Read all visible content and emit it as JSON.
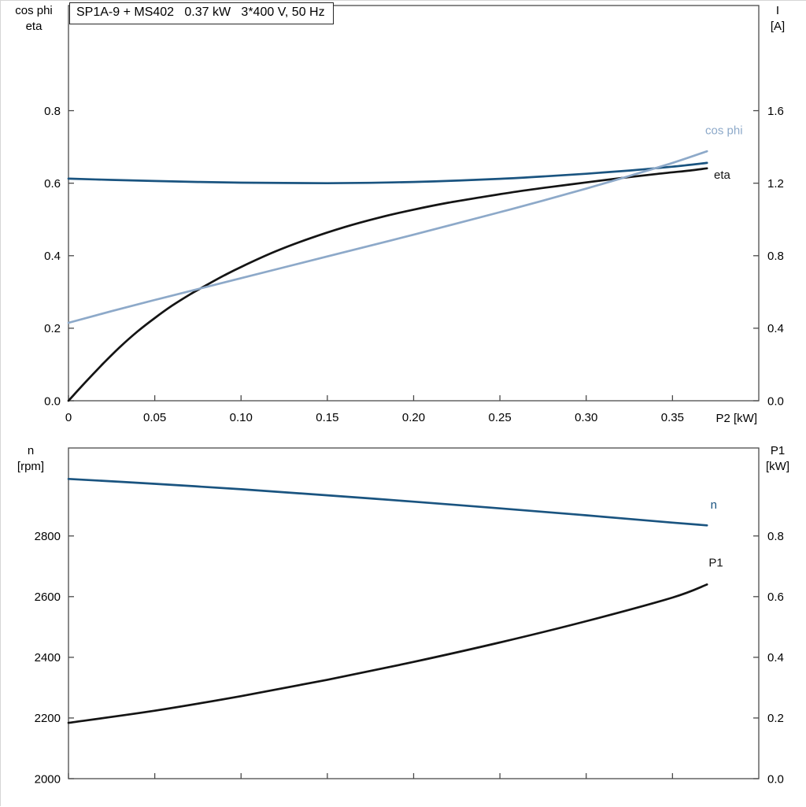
{
  "window": {
    "background": "#ffffff"
  },
  "colors": {
    "black": "#141414",
    "dark_blue": "#1a5480",
    "light_blue": "#8da9c9",
    "frame": "#4a4a4a",
    "text": "#000000"
  },
  "chart_data": [
    {
      "type": "line",
      "name": "motor-performance",
      "title": "SP1A-9 + MS402   0.37 kW   3*400 V, 50 Hz",
      "x": {
        "label": "P2 [kW]",
        "range": [
          0,
          0.4
        ],
        "ticks": [
          0,
          0.05,
          0.1,
          0.15,
          0.2,
          0.25,
          0.3,
          0.35
        ],
        "tick_labels": [
          "0",
          "0.05",
          "0.10",
          "0.15",
          "0.20",
          "0.25",
          "0.30",
          "0.35"
        ],
        "show_tick_labels": true
      },
      "y_left": {
        "label_lines": [
          "cos phi",
          "eta"
        ],
        "range": [
          0,
          1.09
        ],
        "ticks": [
          0.0,
          0.2,
          0.4,
          0.6,
          0.8
        ],
        "tick_labels": [
          "0.0",
          "0.2",
          "0.4",
          "0.6",
          "0.8"
        ]
      },
      "y_right": {
        "label_lines": [
          "I",
          "[A]"
        ],
        "range": [
          0,
          2.18
        ],
        "ticks": [
          0.0,
          0.4,
          0.8,
          1.2,
          1.6
        ],
        "tick_labels": [
          "0.0",
          "0.4",
          "0.8",
          "1.2",
          "1.6"
        ]
      },
      "grid": false,
      "series": [
        {
          "name": "eta",
          "label": "eta",
          "axis": "left",
          "color": "black",
          "label_at": [
            0.374,
            0.612
          ],
          "points": [
            [
              0,
              0
            ],
            [
              0.01,
              0.052
            ],
            [
              0.02,
              0.102
            ],
            [
              0.03,
              0.149
            ],
            [
              0.04,
              0.191
            ],
            [
              0.05,
              0.228
            ],
            [
              0.06,
              0.262
            ],
            [
              0.07,
              0.292
            ],
            [
              0.08,
              0.319
            ],
            [
              0.09,
              0.345
            ],
            [
              0.1,
              0.369
            ],
            [
              0.12,
              0.412
            ],
            [
              0.14,
              0.448
            ],
            [
              0.16,
              0.479
            ],
            [
              0.18,
              0.505
            ],
            [
              0.2,
              0.527
            ],
            [
              0.22,
              0.546
            ],
            [
              0.24,
              0.562
            ],
            [
              0.26,
              0.577
            ],
            [
              0.28,
              0.59
            ],
            [
              0.3,
              0.602
            ],
            [
              0.32,
              0.614
            ],
            [
              0.34,
              0.625
            ],
            [
              0.36,
              0.635
            ],
            [
              0.37,
              0.641
            ]
          ]
        },
        {
          "name": "I",
          "label": "",
          "axis": "right",
          "color": "dark_blue",
          "points": [
            [
              0,
              1.225
            ],
            [
              0.025,
              1.218
            ],
            [
              0.05,
              1.212
            ],
            [
              0.075,
              1.207
            ],
            [
              0.1,
              1.203
            ],
            [
              0.125,
              1.201
            ],
            [
              0.15,
              1.2
            ],
            [
              0.175,
              1.202
            ],
            [
              0.2,
              1.207
            ],
            [
              0.225,
              1.214
            ],
            [
              0.25,
              1.224
            ],
            [
              0.275,
              1.237
            ],
            [
              0.3,
              1.252
            ],
            [
              0.325,
              1.27
            ],
            [
              0.35,
              1.291
            ],
            [
              0.37,
              1.312
            ]
          ]
        },
        {
          "name": "cos-phi",
          "label": "cos phi",
          "axis": "left",
          "color": "light_blue",
          "label_at": [
            0.369,
            0.735
          ],
          "points": [
            [
              0,
              0.215
            ],
            [
              0.025,
              0.247
            ],
            [
              0.05,
              0.278
            ],
            [
              0.075,
              0.308
            ],
            [
              0.1,
              0.338
            ],
            [
              0.125,
              0.368
            ],
            [
              0.15,
              0.398
            ],
            [
              0.175,
              0.428
            ],
            [
              0.2,
              0.458
            ],
            [
              0.225,
              0.489
            ],
            [
              0.25,
              0.52
            ],
            [
              0.275,
              0.552
            ],
            [
              0.3,
              0.585
            ],
            [
              0.325,
              0.62
            ],
            [
              0.35,
              0.656
            ],
            [
              0.37,
              0.688
            ]
          ]
        }
      ]
    },
    {
      "type": "line",
      "name": "speed-and-input-power",
      "title": "",
      "x": {
        "label": "",
        "range": [
          0,
          0.4
        ],
        "ticks": [
          0,
          0.05,
          0.1,
          0.15,
          0.2,
          0.25,
          0.3,
          0.35
        ],
        "tick_labels": [],
        "show_tick_labels": false
      },
      "y_left": {
        "label_lines": [
          "n",
          "[rpm]"
        ],
        "range": [
          2000,
          3090
        ],
        "ticks": [
          2000,
          2200,
          2400,
          2600,
          2800
        ],
        "tick_labels": [
          "2000",
          "2200",
          "2400",
          "2600",
          "2800"
        ]
      },
      "y_right": {
        "label_lines": [
          "P1",
          "[kW]"
        ],
        "range": [
          0,
          1.09
        ],
        "ticks": [
          0.0,
          0.2,
          0.4,
          0.6,
          0.8
        ],
        "tick_labels": [
          "0.0",
          "0.2",
          "0.4",
          "0.6",
          "0.8"
        ]
      },
      "grid": false,
      "series": [
        {
          "name": "n",
          "label": "n",
          "axis": "left",
          "color": "dark_blue",
          "label_at": [
            0.372,
            2890
          ],
          "points": [
            [
              0,
              2988
            ],
            [
              0.05,
              2972
            ],
            [
              0.1,
              2954
            ],
            [
              0.15,
              2934
            ],
            [
              0.2,
              2913
            ],
            [
              0.25,
              2891
            ],
            [
              0.3,
              2868
            ],
            [
              0.35,
              2844
            ],
            [
              0.37,
              2835
            ]
          ]
        },
        {
          "name": "P1",
          "label": "P1",
          "axis": "right",
          "color": "black",
          "label_at": [
            0.371,
            0.7
          ],
          "points": [
            [
              0,
              0.184
            ],
            [
              0.05,
              0.224
            ],
            [
              0.1,
              0.272
            ],
            [
              0.15,
              0.326
            ],
            [
              0.2,
              0.385
            ],
            [
              0.25,
              0.449
            ],
            [
              0.3,
              0.519
            ],
            [
              0.35,
              0.597
            ],
            [
              0.37,
              0.64
            ]
          ]
        }
      ]
    }
  ]
}
